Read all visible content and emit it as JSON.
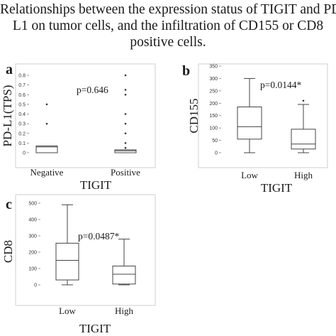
{
  "figure": {
    "title_lines": [
      "Relationships between the expression status of TIGIT and PD-",
      "L1 on tumor cells, and the infiltration of CD155 or CD8",
      "positive cells."
    ]
  },
  "chart_data": [
    {
      "panel": "a",
      "type": "box",
      "xlabel": "TIGIT",
      "ylabel": "PD-L1(TPS)",
      "ylim": [
        0,
        0.8
      ],
      "yticks": [
        0,
        0.1,
        0.2,
        0.3,
        0.4,
        0.5,
        0.6,
        0.7,
        0.8
      ],
      "ytick_labels": [
        "0",
        "0.1",
        "0.2",
        "0.3",
        "0.4",
        "0.5",
        "0.6",
        "0.7",
        "0.8"
      ],
      "annotation": "p=0.646",
      "categories": [
        "Negative",
        "Positive"
      ],
      "boxes": [
        {
          "category": "Negative",
          "min": 0,
          "q1": 0,
          "median": 0.06,
          "q3": 0.07,
          "max": 0.07,
          "outliers": [
            0.3,
            0.5
          ]
        },
        {
          "category": "Positive",
          "min": 0,
          "q1": 0,
          "median": 0.02,
          "q3": 0.03,
          "max": 0.03,
          "outliers": [
            0.05,
            0.1,
            0.2,
            0.3,
            0.4,
            0.6,
            0.65,
            0.8
          ]
        }
      ]
    },
    {
      "panel": "b",
      "type": "box",
      "xlabel": "TIGIT",
      "ylabel": "CD155",
      "ylim": [
        0,
        350
      ],
      "yticks": [
        0,
        50,
        100,
        150,
        200,
        250,
        300,
        350
      ],
      "ytick_labels": [
        "0",
        "50",
        "100",
        "150",
        "200",
        "250",
        "300",
        "350"
      ],
      "annotation": "p=0.0144*",
      "categories": [
        "Low",
        "High"
      ],
      "boxes": [
        {
          "category": "Low",
          "min": 0,
          "q1": 55,
          "median": 105,
          "q3": 185,
          "max": 300,
          "outliers": []
        },
        {
          "category": "High",
          "min": 0,
          "q1": 15,
          "median": 35,
          "q3": 95,
          "max": 195,
          "outliers": [
            210
          ]
        }
      ]
    },
    {
      "panel": "c",
      "type": "box",
      "xlabel": "TIGIT",
      "ylabel": "CD8",
      "ylim": [
        0,
        500
      ],
      "yticks": [
        0,
        100,
        200,
        300,
        400,
        500
      ],
      "ytick_labels": [
        "0",
        "100",
        "200",
        "300",
        "400",
        "500"
      ],
      "annotation": "p=0.0487*",
      "categories": [
        "Low",
        "High"
      ],
      "boxes": [
        {
          "category": "Low",
          "min": 0,
          "q1": 30,
          "median": 150,
          "q3": 255,
          "max": 490,
          "outliers": []
        },
        {
          "category": "High",
          "min": 0,
          "q1": 5,
          "median": 65,
          "q3": 115,
          "max": 280,
          "outliers": []
        }
      ]
    }
  ]
}
